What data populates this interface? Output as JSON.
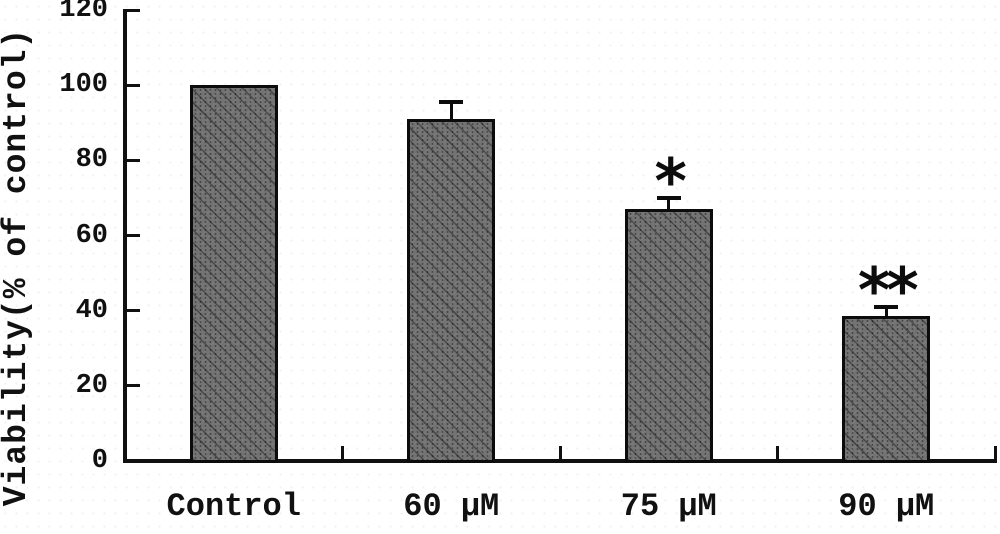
{
  "figure": {
    "background_color": "#ffffff",
    "text_color": "#111111"
  },
  "chart_data": {
    "type": "bar",
    "title": "",
    "xlabel": "",
    "ylabel": "Viability(% of control)",
    "categories": [
      "Control",
      "60 μM",
      "75 μM",
      "90 μM"
    ],
    "values": [
      100,
      91,
      67,
      38.5
    ],
    "error_plus": [
      0,
      4.5,
      3,
      2.5
    ],
    "significance": [
      "",
      "",
      "*",
      "**"
    ],
    "ylim": [
      0,
      120
    ],
    "yticks": [
      0,
      20,
      40,
      60,
      80,
      100,
      120
    ],
    "grid": "off",
    "legend": "none",
    "bar_color": "#737373",
    "bar_border_color": "#0c0c0c",
    "axis_color": "#101010"
  }
}
